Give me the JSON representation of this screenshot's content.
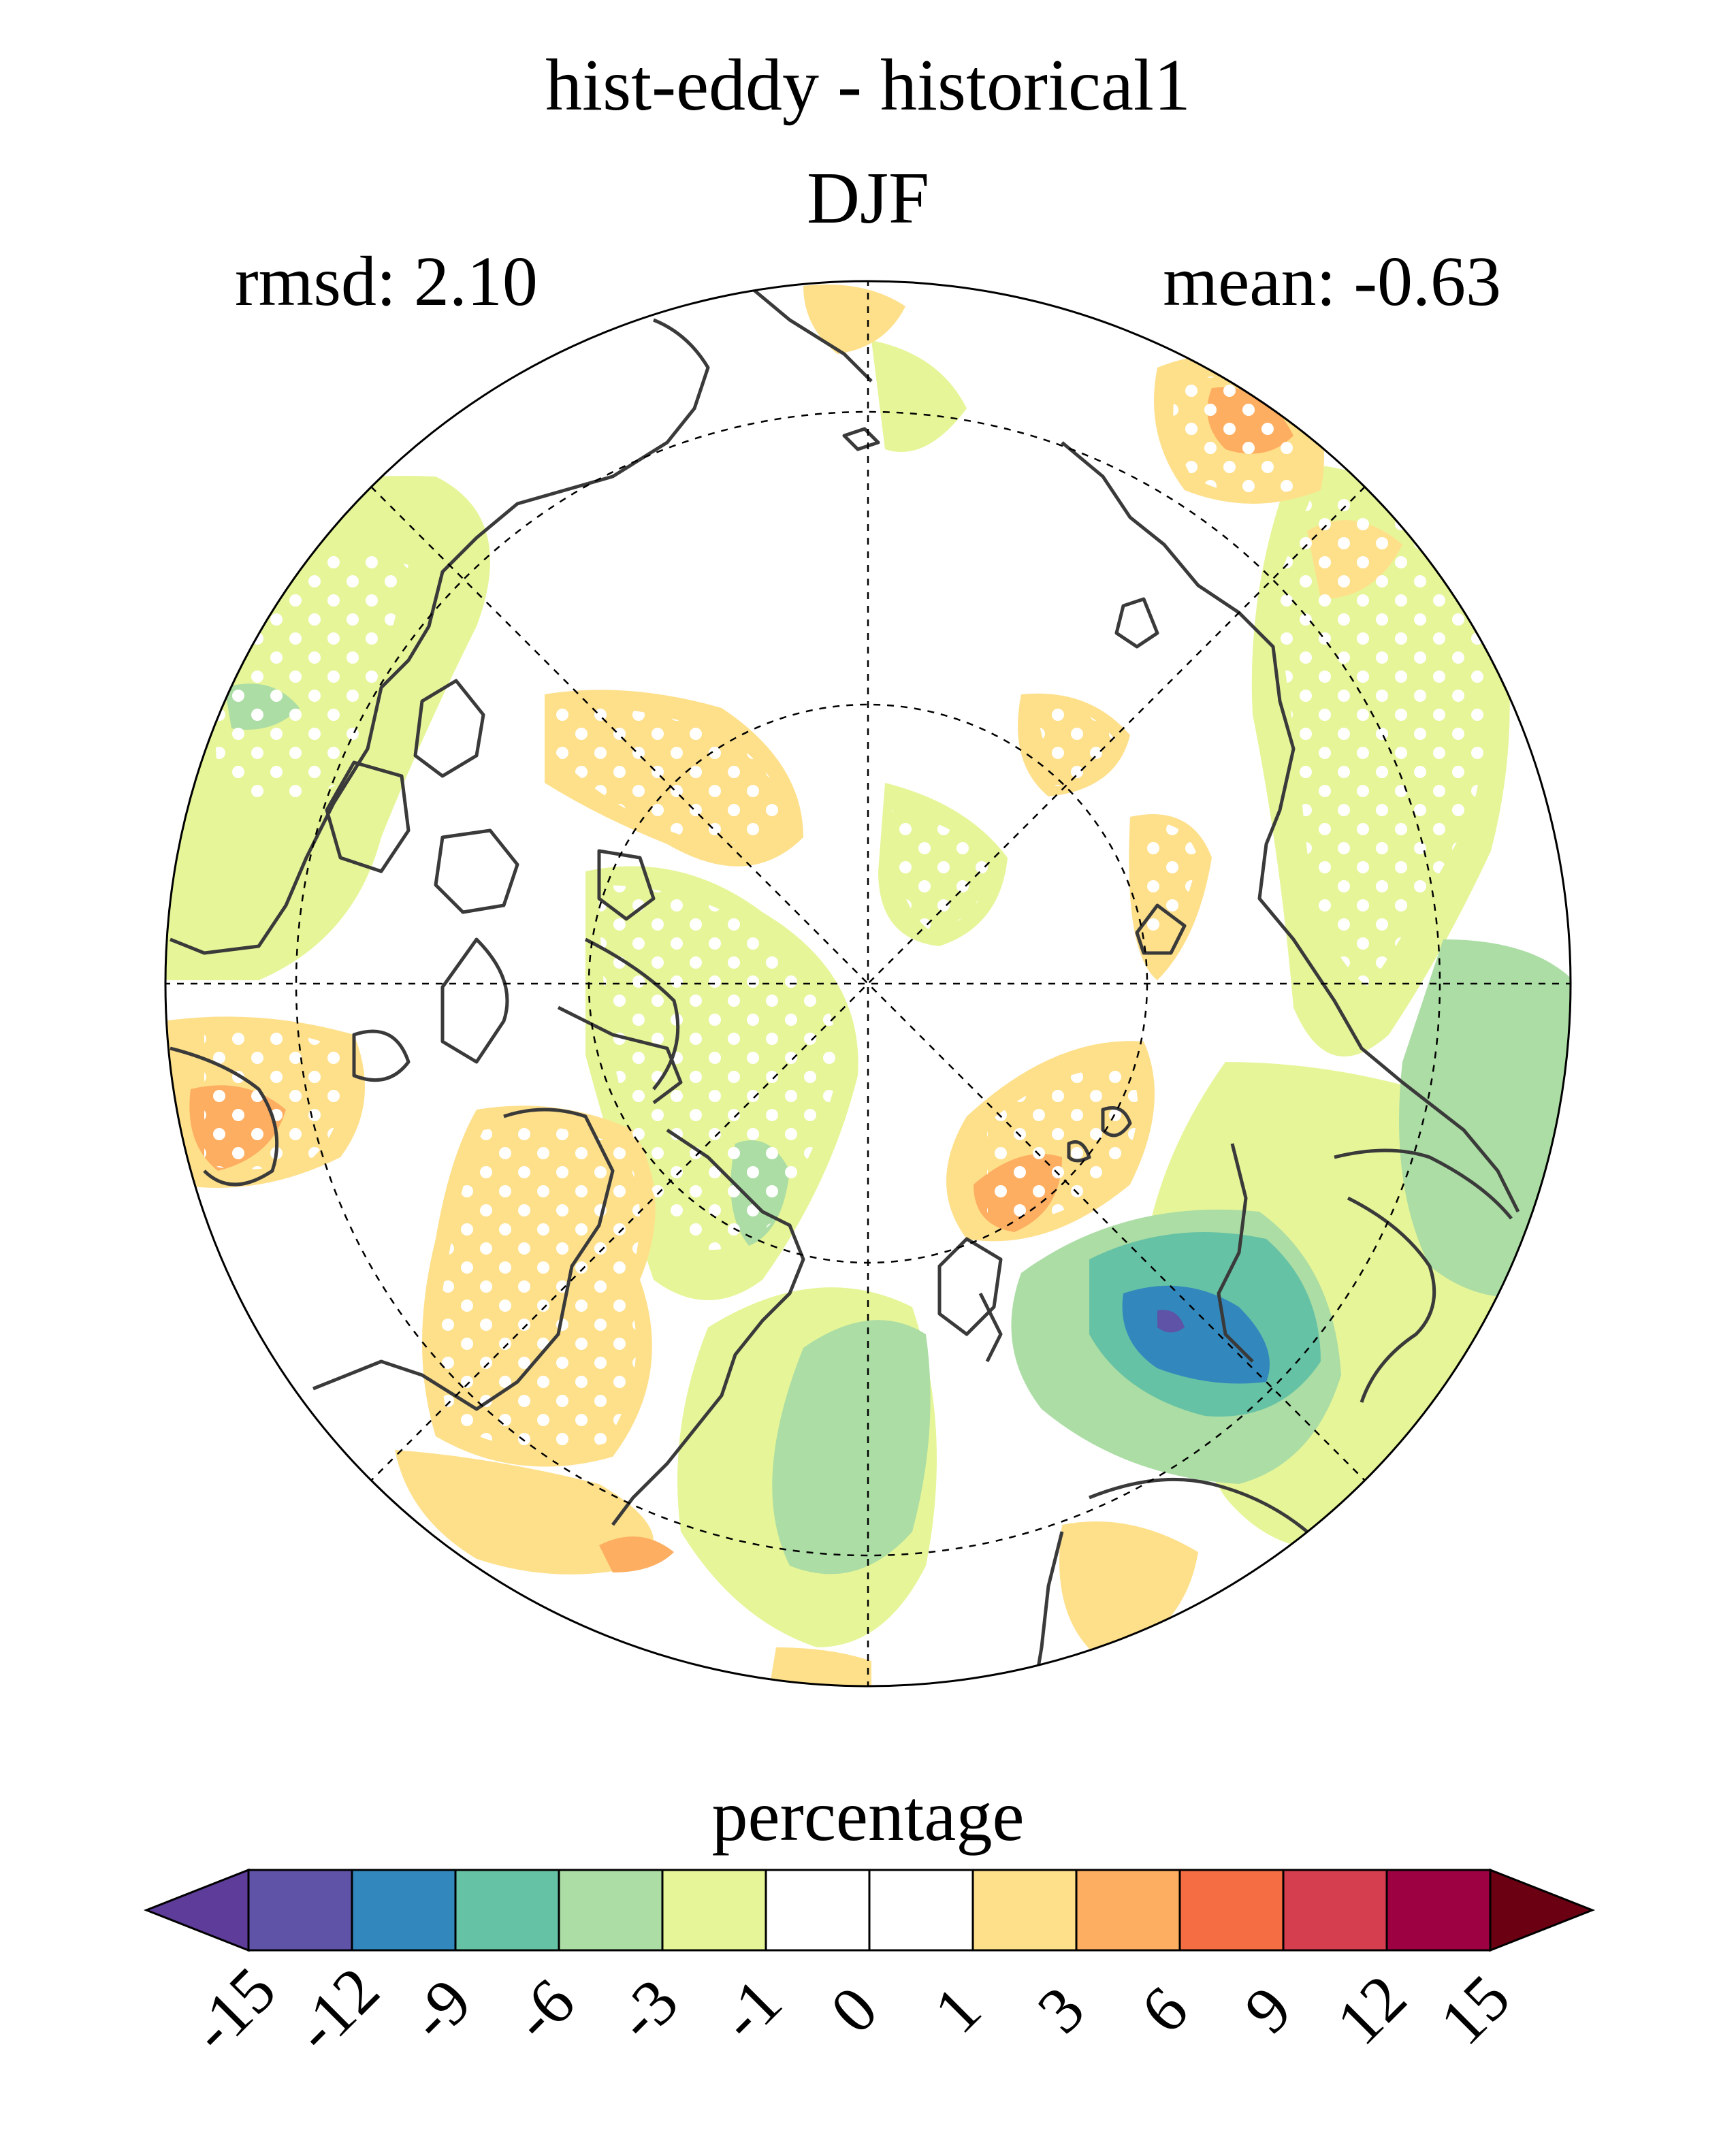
{
  "title": "hist-eddy - historical1",
  "season": "DJF",
  "rmsd_text": "rmsd: 2.10",
  "mean_text": "mean: -0.63",
  "colorbar": {
    "label": "percentage",
    "ticks": [
      "-15",
      "-12",
      "-9",
      "-6",
      "-3",
      "-1",
      "0",
      "1",
      "3",
      "6",
      "9",
      "12",
      "15"
    ],
    "colors": [
      "#5e3c99",
      "#5e53a6",
      "#3288bd",
      "#66c2a5",
      "#abdda4",
      "#e6f598",
      "#ffffff",
      "#ffffff",
      "#fee08b",
      "#fdae61",
      "#f46d43",
      "#d53e4f",
      "#9e0142",
      "#6b0013"
    ]
  },
  "map": {
    "projection": "north polar stereographic",
    "field": "percentage difference",
    "stippling": "white dots mark significant regions"
  }
}
